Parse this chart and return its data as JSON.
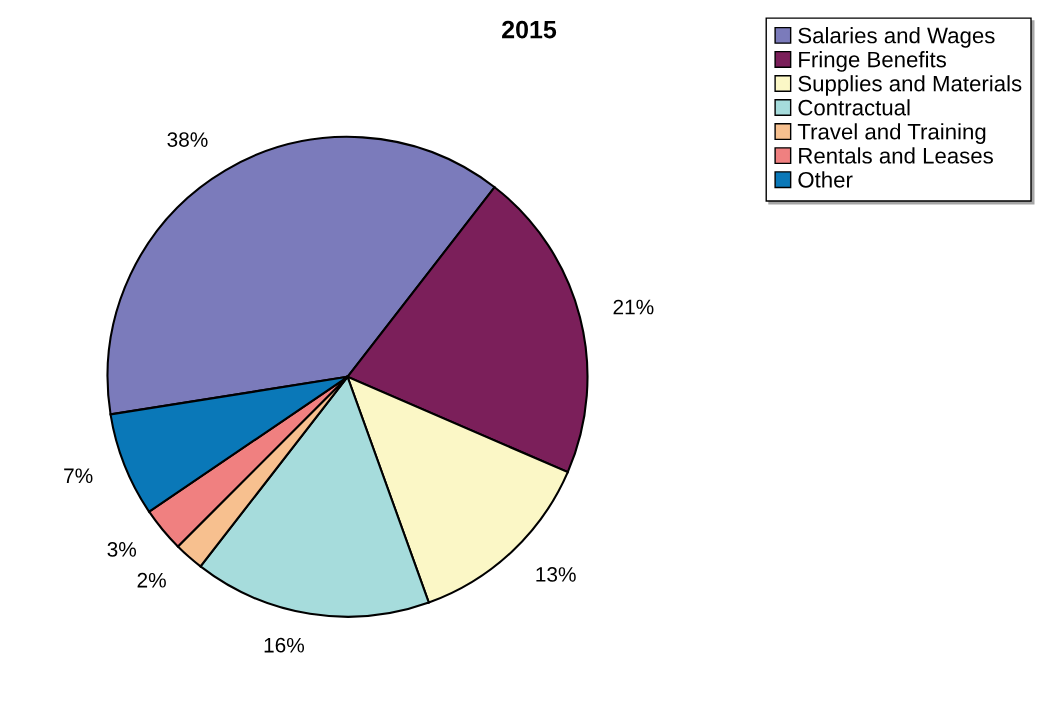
{
  "chart_data": {
    "type": "pie",
    "title": "2015",
    "categories": [
      "Salaries and Wages",
      "Fringe Benefits",
      "Supplies and Materials",
      "Contractual",
      "Travel and Training",
      "Rentals and Leases",
      "Other"
    ],
    "values": [
      38,
      21,
      13,
      16,
      2,
      3,
      7
    ],
    "colors": [
      "#7b7bbb",
      "#7b1f5a",
      "#fbf7c6",
      "#a6dcdc",
      "#f7c08f",
      "#f08080",
      "#0a78b8"
    ],
    "value_labels": [
      "38%",
      "21%",
      "13%",
      "16%",
      "2%",
      "3%",
      "7%"
    ],
    "legend": "top right"
  }
}
